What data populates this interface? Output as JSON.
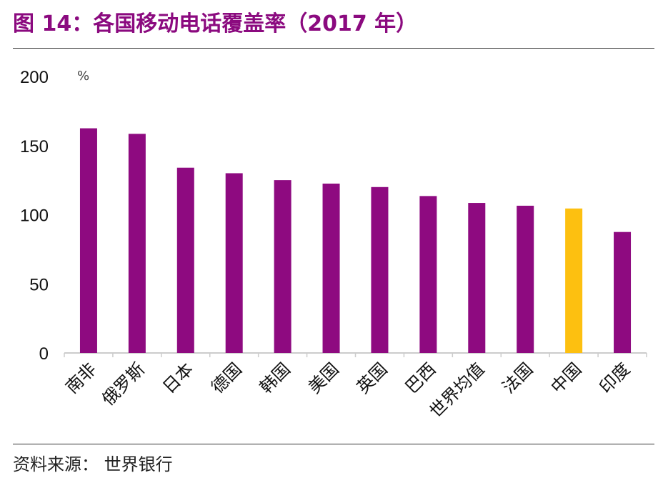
{
  "title": "图 14：各国移动电话覆盖率（2017 年）",
  "source": "资料来源： 世界银行",
  "chart_data": {
    "type": "bar",
    "title": "图 14：各国移动电话覆盖率（2017 年）",
    "ylabel": "%",
    "xlabel": "",
    "ylim": [
      0,
      200
    ],
    "yticks": [
      0,
      50,
      100,
      150,
      200
    ],
    "grid": false,
    "categories": [
      "南非",
      "俄罗斯",
      "日本",
      "德国",
      "韩国",
      "美国",
      "英国",
      "巴西",
      "世界均值",
      "法国",
      "中国",
      "印度"
    ],
    "values": [
      162.5,
      158.5,
      134,
      130,
      125,
      122.5,
      120,
      113.5,
      108.5,
      106.5,
      104.5,
      87.5
    ],
    "colors": {
      "default": "#8e0a80",
      "highlight": "#fdc010",
      "highlight_category": "中国"
    }
  }
}
